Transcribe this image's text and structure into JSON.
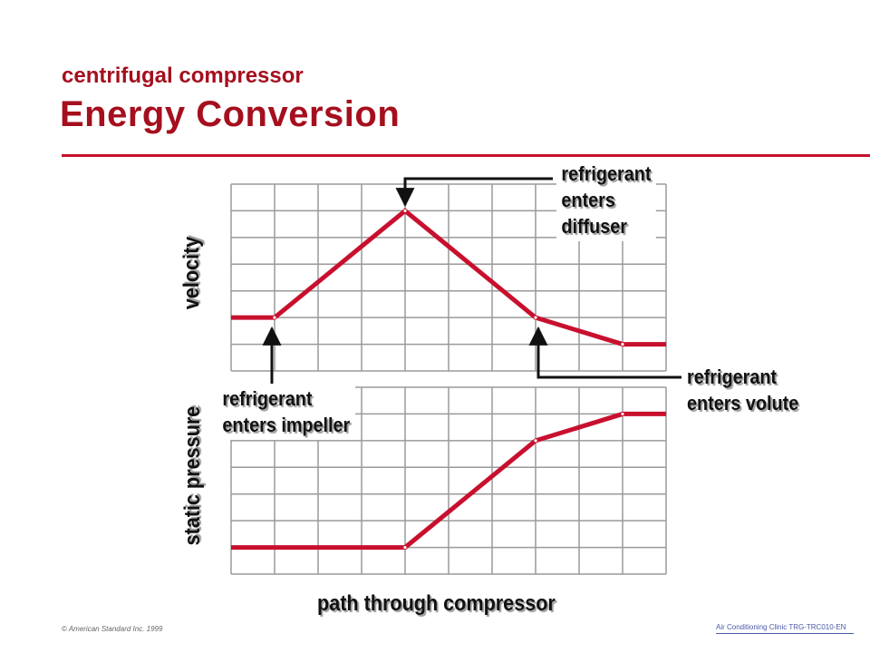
{
  "header": {
    "subtitle": "centrifugal compressor",
    "title": "Energy Conversion"
  },
  "axes": {
    "velocity": "velocity",
    "static_pressure": "static pressure",
    "x_axis": "path through compressor"
  },
  "annotations": {
    "diffuser": [
      "refrigerant",
      "enters",
      "diffuser"
    ],
    "volute": [
      "refrigerant",
      "enters volute"
    ],
    "impeller": [
      "refrigerant",
      "enters impeller"
    ]
  },
  "chart_data": [
    {
      "type": "line",
      "ylabel": "velocity",
      "x": [
        0,
        1,
        4,
        7,
        9,
        10
      ],
      "y": [
        2.0,
        2.0,
        6.0,
        2.0,
        1.0,
        1.0
      ],
      "xlim": [
        0,
        10
      ],
      "ylim": [
        0,
        7
      ],
      "grid": true
    },
    {
      "type": "line",
      "ylabel": "static pressure",
      "xlabel": "path through compressor",
      "x": [
        0,
        4,
        7,
        9,
        10
      ],
      "y": [
        1.0,
        1.0,
        5.0,
        6.0,
        6.0
      ],
      "xlim": [
        0,
        10
      ],
      "ylim": [
        0,
        7
      ],
      "grid": true
    }
  ],
  "colors": {
    "accent": "#c8102e",
    "line": "#c8102e",
    "grid": "#9a9a9a"
  },
  "footer": {
    "copyright": "© American Standard Inc. 1999",
    "course": "Air Conditioning Clinic TRG-TRC010-EN"
  }
}
